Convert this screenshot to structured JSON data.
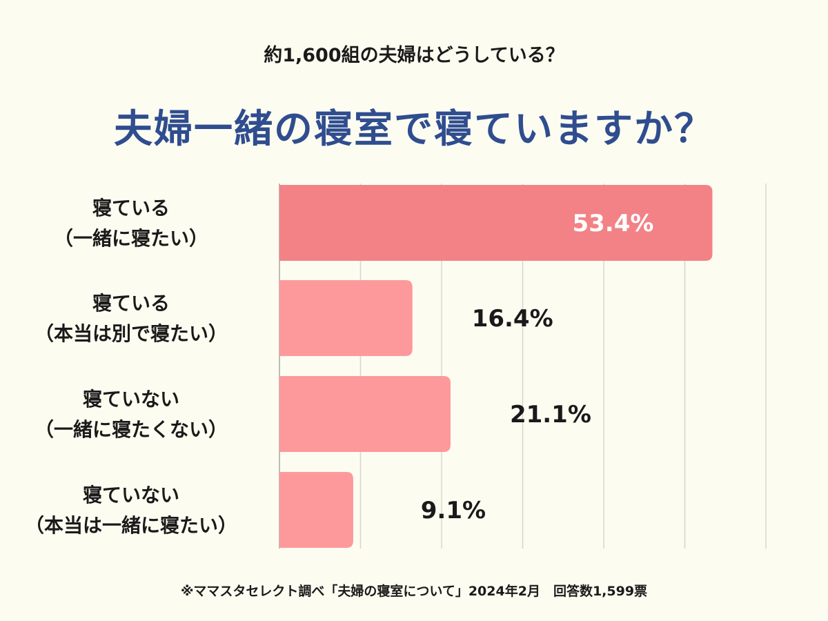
{
  "subtitle": "約1,600組の夫婦はどうしている？",
  "title": "夫婦一緒の寝室で寝ていますか？",
  "footnote": "※ママスタセレクト調べ「夫婦の寝室について」2024年2月　回答数1,599票",
  "colors": {
    "highlight_bar": "#f28286",
    "bar": "#fd999b",
    "title": "#2f4d8f",
    "grid": "#d6d6d0"
  },
  "chart_data": {
    "type": "bar",
    "orientation": "horizontal",
    "title": "夫婦一緒の寝室で寝ていますか？",
    "categories": [
      [
        "寝ている",
        "（一緒に寝たい）"
      ],
      [
        "寝ている",
        "（本当は別で寝たい）"
      ],
      [
        "寝ていない",
        "（一緒に寝たくない）"
      ],
      [
        "寝ていない",
        "（本当は一緒に寝たい）"
      ]
    ],
    "values": [
      53.4,
      16.4,
      21.1,
      9.1
    ],
    "value_labels": [
      "53.4%",
      "16.4%",
      "21.1%",
      "9.1%"
    ],
    "highlight_index": 0,
    "xlim": [
      0,
      60
    ],
    "grid_step": 10,
    "xlabel": "",
    "ylabel": ""
  }
}
